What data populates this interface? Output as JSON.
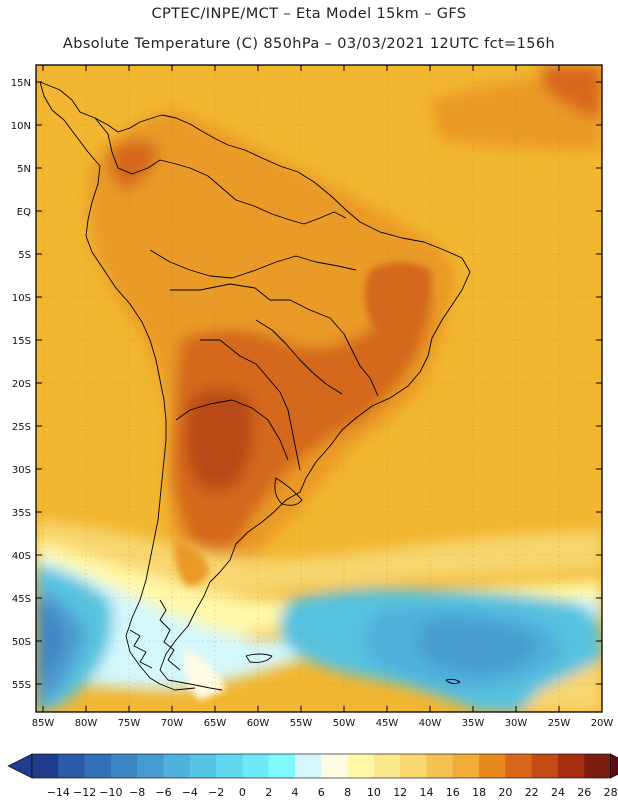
{
  "header": {
    "line1": "CPTEC/INPE/MCT –  Eta Model 15km – GFS",
    "line2": "Absolute Temperature (C) 850hPa – 03/03/2021 12UTC fct=156h"
  },
  "map": {
    "lat_labels": [
      "15N",
      "10N",
      "5N",
      "EQ",
      "5S",
      "10S",
      "15S",
      "20S",
      "25S",
      "30S",
      "35S",
      "40S",
      "45S",
      "50S",
      "55S"
    ],
    "lon_labels": [
      "85W",
      "80W",
      "75W",
      "70W",
      "65W",
      "60W",
      "55W",
      "50W",
      "45W",
      "40W",
      "35W",
      "30W",
      "25W",
      "20W"
    ],
    "colors": {
      "ocean_warm": "#f2b630",
      "land_warm": "#ea9a28",
      "land_hot": "#d4671a",
      "hot_core": "#b84a12",
      "cold_ocean": "#56c3e0",
      "deep_cold": "#4f9bd0"
    }
  },
  "colorbar": {
    "labels": [
      "-14",
      "-12",
      "-10",
      "-8",
      "-6",
      "-4",
      "-2",
      "0",
      "2",
      "4",
      "6",
      "8",
      "10",
      "12",
      "14",
      "16",
      "18",
      "20",
      "22",
      "24",
      "26",
      "28"
    ],
    "colors": [
      "#1f3d8c",
      "#2a5aa8",
      "#3270b8",
      "#3c86c6",
      "#469cd2",
      "#4fb1dc",
      "#57c4e6",
      "#60d6ef",
      "#6ce8f7",
      "#7ff8ff",
      "#d4f7fb",
      "#fffbe4",
      "#fff8a8",
      "#fbe88a",
      "#f8d770",
      "#f4c252",
      "#f1ad36",
      "#e68a1c",
      "#d9671a",
      "#c64a14",
      "#a82e10",
      "#7c1c10",
      "#5c0c16"
    ]
  }
}
